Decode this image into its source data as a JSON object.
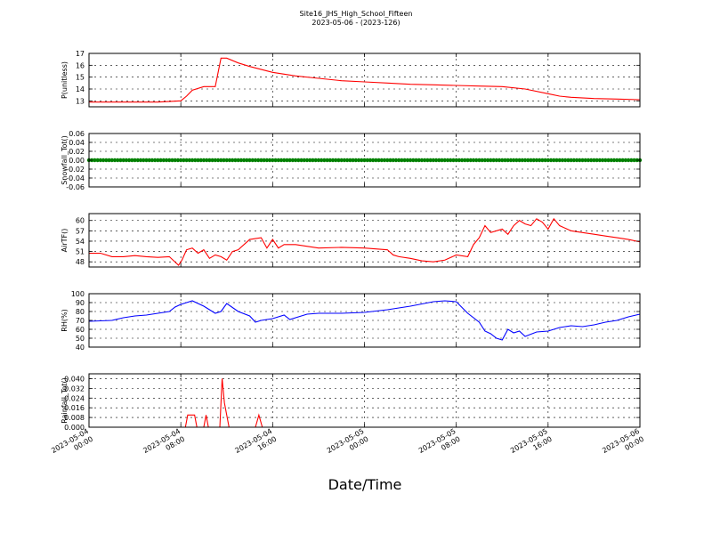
{
  "figure": {
    "title": "Site16_JHS_High_School_Fifteen",
    "subtitle": "2023-05-06 - (2023-126)",
    "xlabel": "Date/Time"
  },
  "chart_data": {
    "type": "line",
    "x_axis": {
      "range": [
        "2023-05-04 00:00",
        "2023-05-06 00:00"
      ],
      "ticks": [
        "2023-05-04 00:00",
        "2023-05-04 08:00",
        "2023-05-04 16:00",
        "2023-05-05 00:00",
        "2023-05-05 08:00",
        "2023-05-05 16:00",
        "2023-05-06 00:00"
      ],
      "tick_labels": [
        [
          "2023-05-04",
          "00:00"
        ],
        [
          "2023-05-04",
          "08:00"
        ],
        [
          "2023-05-04",
          "16:00"
        ],
        [
          "2023-05-05",
          "00:00"
        ],
        [
          "2023-05-05",
          "08:00"
        ],
        [
          "2023-05-05",
          "16:00"
        ],
        [
          "2023-05-06",
          "00:00"
        ]
      ]
    },
    "grid": true,
    "panels": [
      {
        "ylabel": "P(unitless)",
        "ylim": [
          12.5,
          17
        ],
        "yticks": [
          "13",
          "14",
          "15",
          "16",
          "17"
        ],
        "ytick_values": [
          13,
          14,
          15,
          16,
          17
        ],
        "color": "#ff0000",
        "style": "line",
        "x_hours": [
          0,
          2,
          6,
          8,
          8.5,
          9,
          10,
          11,
          11.5,
          12,
          13,
          14,
          16,
          18,
          20,
          22,
          24,
          26,
          28,
          30,
          32,
          34,
          36,
          38,
          40,
          41,
          42,
          44,
          46,
          48
        ],
        "values": [
          12.9,
          12.9,
          12.9,
          13.0,
          13.4,
          13.9,
          14.2,
          14.2,
          16.6,
          16.6,
          16.2,
          15.9,
          15.4,
          15.1,
          14.9,
          14.7,
          14.6,
          14.5,
          14.4,
          14.35,
          14.3,
          14.25,
          14.2,
          14.0,
          13.6,
          13.4,
          13.3,
          13.2,
          13.15,
          13.1
        ]
      },
      {
        "ylabel": "Snowfall_Tot()",
        "ylim": [
          -0.06,
          0.06
        ],
        "yticks": [
          "0.06",
          "0.04",
          "0.02",
          "0.00",
          "-0.02",
          "-0.04",
          "-0.06"
        ],
        "ytick_values": [
          0.06,
          0.04,
          0.02,
          0.0,
          -0.02,
          -0.04,
          -0.06
        ],
        "color": "#008000",
        "style": "dots",
        "x_hours": [
          0,
          48
        ],
        "values": [
          0.0,
          0.0
        ]
      },
      {
        "ylabel": "AirTF()",
        "ylim": [
          46.5,
          62
        ],
        "yticks": [
          "48",
          "51",
          "54",
          "57",
          "60"
        ],
        "ytick_values": [
          48,
          51,
          54,
          57,
          60
        ],
        "color": "#ff0000",
        "style": "line",
        "x_hours": [
          0,
          1,
          2,
          3,
          4,
          5,
          6,
          7,
          7.8,
          8.1,
          8.5,
          9,
          9.5,
          10,
          10.5,
          11,
          11.5,
          12,
          12.5,
          13,
          14,
          15,
          15.5,
          16,
          16.5,
          17,
          18,
          20,
          22,
          24,
          26,
          26.5,
          27,
          28,
          29,
          30,
          31,
          32,
          33,
          33.5,
          34,
          34.5,
          35,
          36,
          36.5,
          37,
          37.5,
          38,
          38.5,
          39,
          39.5,
          40,
          40.5,
          41,
          42,
          43,
          44,
          45,
          46,
          47,
          48
        ],
        "values": [
          50.5,
          50.5,
          49.5,
          49.5,
          49.8,
          49.5,
          49.3,
          49.5,
          47.0,
          48.5,
          51.5,
          52.0,
          50.5,
          51.5,
          49.0,
          50.0,
          49.5,
          48.5,
          51.0,
          51.5,
          54.5,
          55.0,
          52.0,
          54.5,
          52.0,
          53.0,
          53.0,
          52.0,
          52.2,
          52.0,
          51.5,
          50.0,
          49.5,
          49.0,
          48.3,
          48.0,
          48.5,
          50.0,
          49.5,
          53.0,
          55.0,
          58.5,
          56.5,
          57.5,
          56.0,
          58.5,
          60.0,
          59.0,
          58.5,
          60.5,
          59.5,
          57.5,
          60.5,
          58.5,
          57.0,
          56.5,
          56.0,
          55.5,
          55.0,
          54.5,
          53.8
        ]
      },
      {
        "ylabel": "RH(%)",
        "ylim": [
          40,
          100
        ],
        "yticks": [
          "40",
          "50",
          "60",
          "70",
          "80",
          "90",
          "100"
        ],
        "ytick_values": [
          40,
          50,
          60,
          70,
          80,
          90,
          100
        ],
        "color": "#0000ff",
        "style": "line",
        "x_hours": [
          0,
          2,
          3,
          4,
          5,
          6,
          7,
          7.5,
          8,
          8.5,
          9,
          10,
          11,
          11.5,
          12,
          13,
          14,
          14.5,
          15,
          16,
          17,
          17.5,
          18,
          19,
          20,
          22,
          24,
          26,
          28,
          30,
          31,
          32,
          33,
          34,
          34.5,
          35,
          35.5,
          36,
          36.5,
          37,
          37.5,
          38,
          39,
          40,
          41,
          42,
          43,
          44,
          45,
          46,
          47,
          48
        ],
        "values": [
          69,
          70,
          73,
          75,
          76,
          78,
          80,
          85,
          88,
          90,
          92,
          86,
          78,
          80,
          89,
          80,
          75,
          68,
          70,
          72,
          76,
          71,
          73,
          77,
          78,
          78,
          79,
          82,
          86,
          91,
          92,
          91,
          78,
          68,
          58,
          55,
          50,
          48,
          60,
          56,
          58,
          52,
          57,
          58,
          62,
          64,
          63,
          65,
          68,
          70,
          74,
          77
        ]
      },
      {
        "ylabel": "Rainfall_Tot()",
        "ylim": [
          0,
          0.044
        ],
        "yticks": [
          "0.000",
          "0.008",
          "0.016",
          "0.024",
          "0.032",
          "0.040"
        ],
        "ytick_values": [
          0.0,
          0.008,
          0.016,
          0.024,
          0.032,
          0.04
        ],
        "color": "#ff0000",
        "style": "line",
        "x_hours": [
          0,
          8.0,
          8.4,
          8.6,
          8.8,
          9.0,
          9.2,
          9.4,
          9.6,
          10.0,
          10.2,
          10.4,
          11.0,
          11.4,
          11.6,
          11.8,
          12.2,
          14.5,
          14.8,
          15.1,
          48
        ],
        "values": [
          0,
          0,
          0,
          0.01,
          0.01,
          0.01,
          0.01,
          0,
          0,
          0,
          0.01,
          0,
          0,
          0,
          0.04,
          0.02,
          0,
          0,
          0.01,
          0,
          0
        ]
      }
    ]
  }
}
